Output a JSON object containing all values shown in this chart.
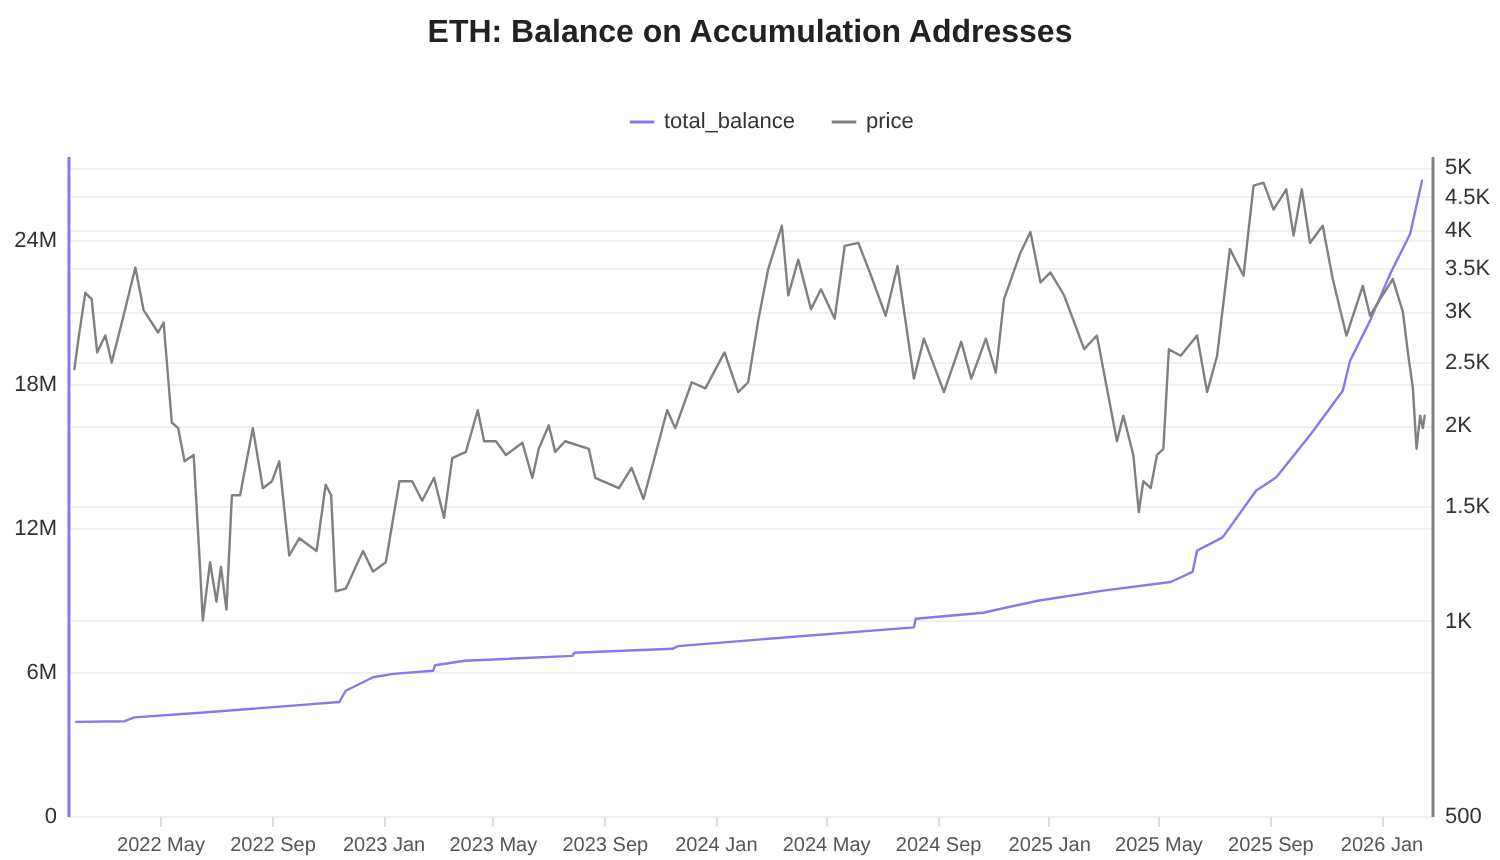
{
  "chart_data": {
    "type": "line",
    "title": "ETH: Balance on Accumulation Addresses",
    "xlim": [
      "2022-01-20",
      "2026-02-26"
    ],
    "xticks": [
      {
        "value": "2022-05-01",
        "label": "2022 May"
      },
      {
        "value": "2022-09-01",
        "label": "2022 Sep"
      },
      {
        "value": "2023-01-01",
        "label": "2023 Jan"
      },
      {
        "value": "2023-05-01",
        "label": "2023 May"
      },
      {
        "value": "2023-09-01",
        "label": "2023 Sep"
      },
      {
        "value": "2024-01-01",
        "label": "2024 Jan"
      },
      {
        "value": "2024-05-01",
        "label": "2024 May"
      },
      {
        "value": "2024-09-01",
        "label": "2024 Sep"
      },
      {
        "value": "2025-01-01",
        "label": "2025 Jan"
      },
      {
        "value": "2025-05-01",
        "label": "2025 May"
      },
      {
        "value": "2025-09-01",
        "label": "2025 Sep"
      },
      {
        "value": "2026-01-01",
        "label": "2026 Jan"
      }
    ],
    "ylim": [
      0,
      27.5
    ],
    "yticks": [
      {
        "value": 0,
        "label": "0"
      },
      {
        "value": 6,
        "label": "6M"
      },
      {
        "value": 12,
        "label": "12M"
      },
      {
        "value": 18,
        "label": "18M"
      },
      {
        "value": 24,
        "label": "24M"
      }
    ],
    "y2lim": [
      500,
      5200
    ],
    "y2ticks": [
      {
        "value": 500,
        "label": "500"
      },
      {
        "value": 1000,
        "label": "1K"
      },
      {
        "value": 1500,
        "label": "1.5K"
      },
      {
        "value": 2000,
        "label": "2K"
      },
      {
        "value": 2500,
        "label": "2.5K"
      },
      {
        "value": 3000,
        "label": "3K"
      },
      {
        "value": 3500,
        "label": "3.5K"
      },
      {
        "value": 4000,
        "label": "4K"
      },
      {
        "value": 4500,
        "label": "4.5K"
      },
      {
        "value": 5000,
        "label": "5K"
      }
    ],
    "log": "y2",
    "grid": "y",
    "legend": "top",
    "marker": "none",
    "series": [
      {
        "name": "total_balance",
        "color": "#8878f0",
        "x": [
          "2022-01-29",
          "2022-03-23",
          "2022-04-03",
          "2022-06-14",
          "2022-10-08",
          "2022-11-14",
          "2022-11-21",
          "2022-12-21",
          "2023-01-12",
          "2023-02-25",
          "2023-02-27",
          "2023-04-01",
          "2023-07-28",
          "2023-07-30",
          "2023-11-15",
          "2023-11-21",
          "2024-02-17",
          "2024-08-06",
          "2024-08-08",
          "2024-10-21",
          "2024-12-20",
          "2025-03-02",
          "2025-05-15",
          "2025-06-08",
          "2025-06-13",
          "2025-07-11",
          "2025-08-17",
          "2025-09-08",
          "2025-10-16",
          "2025-11-20",
          "2025-11-28",
          "2025-12-20",
          "2026-01-11",
          "2026-02-02",
          "2026-02-15"
        ],
        "values": [
          3.92,
          3.95,
          4.11,
          4.3,
          4.64,
          4.75,
          5.22,
          5.78,
          5.92,
          6.05,
          6.28,
          6.47,
          6.67,
          6.8,
          6.97,
          7.08,
          7.35,
          7.86,
          8.22,
          8.47,
          8.97,
          9.39,
          9.75,
          10.17,
          11.06,
          11.61,
          13.56,
          14.11,
          15.92,
          17.72,
          18.97,
          20.64,
          22.58,
          24.25,
          26.47
        ]
      },
      {
        "name": "price",
        "color": "#808080",
        "axis": "y2",
        "x": [
          "2022-01-27",
          "2022-02-01",
          "2022-02-08",
          "2022-02-15",
          "2022-02-21",
          "2022-03-02",
          "2022-03-09",
          "2022-03-22",
          "2022-04-04",
          "2022-04-13",
          "2022-04-29",
          "2022-05-05",
          "2022-05-14",
          "2022-05-21",
          "2022-05-28",
          "2022-06-07",
          "2022-06-14",
          "2022-06-17",
          "2022-06-25",
          "2022-07-02",
          "2022-07-07",
          "2022-07-13",
          "2022-07-19",
          "2022-07-28",
          "2022-08-11",
          "2022-08-22",
          "2022-09-01",
          "2022-09-09",
          "2022-09-20",
          "2022-10-01",
          "2022-10-20",
          "2022-10-30",
          "2022-11-05",
          "2022-11-10",
          "2022-11-21",
          "2022-12-10",
          "2022-12-21",
          "2023-01-04",
          "2023-01-19",
          "2023-02-02",
          "2023-02-13",
          "2023-02-26",
          "2023-03-09",
          "2023-03-18",
          "2023-04-02",
          "2023-04-15",
          "2023-04-22",
          "2023-05-05",
          "2023-05-16",
          "2023-06-03",
          "2023-06-14",
          "2023-06-21",
          "2023-07-02",
          "2023-07-09",
          "2023-07-20",
          "2023-08-15",
          "2023-08-22",
          "2023-09-17",
          "2023-10-01",
          "2023-10-14",
          "2023-10-27",
          "2023-11-09",
          "2023-11-18",
          "2023-12-06",
          "2023-12-21",
          "2024-01-11",
          "2024-01-26",
          "2024-02-06",
          "2024-02-17",
          "2024-02-28",
          "2024-03-14",
          "2024-03-21",
          "2024-04-01",
          "2024-04-15",
          "2024-04-26",
          "2024-05-11",
          "2024-05-22",
          "2024-06-06",
          "2024-06-20",
          "2024-07-06",
          "2024-07-19",
          "2024-08-06",
          "2024-08-17",
          "2024-09-08",
          "2024-09-27",
          "2024-10-08",
          "2024-10-24",
          "2024-11-04",
          "2024-11-13",
          "2024-12-01",
          "2024-12-12",
          "2024-12-23",
          "2025-01-03",
          "2025-01-18",
          "2025-02-09",
          "2025-02-23",
          "2025-03-06",
          "2025-03-17",
          "2025-03-24",
          "2025-04-04",
          "2025-04-10",
          "2025-04-15",
          "2025-04-23",
          "2025-04-30",
          "2025-05-07",
          "2025-05-13",
          "2025-05-26",
          "2025-06-13",
          "2025-06-24",
          "2025-07-05",
          "2025-07-19",
          "2025-08-03",
          "2025-08-14",
          "2025-08-25",
          "2025-09-05",
          "2025-09-19",
          "2025-09-27",
          "2025-10-06",
          "2025-10-15",
          "2025-10-29",
          "2025-11-09",
          "2025-11-24",
          "2025-12-12",
          "2025-12-20",
          "2025-12-31",
          "2026-01-14",
          "2026-01-25",
          "2026-01-31",
          "2026-02-05",
          "2026-02-09",
          "2026-02-13",
          "2026-02-16",
          "2026-02-18"
        ],
        "values": [
          2440,
          2750,
          3200,
          3130,
          2590,
          2750,
          2500,
          2950,
          3500,
          3010,
          2780,
          2880,
          2020,
          1980,
          1760,
          1800,
          1210,
          1000,
          1230,
          1070,
          1210,
          1040,
          1560,
          1560,
          1980,
          1600,
          1640,
          1760,
          1260,
          1340,
          1280,
          1620,
          1560,
          1110,
          1120,
          1280,
          1190,
          1230,
          1640,
          1640,
          1530,
          1660,
          1440,
          1780,
          1820,
          2110,
          1890,
          1890,
          1800,
          1880,
          1660,
          1840,
          2000,
          1820,
          1890,
          1840,
          1660,
          1600,
          1720,
          1540,
          1800,
          2110,
          1980,
          2330,
          2280,
          2590,
          2250,
          2330,
          2900,
          3480,
          4060,
          3170,
          3600,
          3020,
          3240,
          2920,
          3780,
          3820,
          3400,
          2950,
          3520,
          2360,
          2720,
          2250,
          2690,
          2360,
          2720,
          2410,
          3130,
          3690,
          3970,
          3320,
          3440,
          3170,
          2620,
          2750,
          2280,
          1890,
          2070,
          1800,
          1470,
          1640,
          1600,
          1800,
          1840,
          2620,
          2560,
          2750,
          2250,
          2560,
          3740,
          3400,
          4680,
          4730,
          4300,
          4620,
          3920,
          4620,
          3820,
          4060,
          3360,
          2750,
          3280,
          2950,
          3130,
          3360,
          2990,
          2560,
          2280,
          1840,
          2070,
          1980,
          2070
        ]
      }
    ]
  }
}
